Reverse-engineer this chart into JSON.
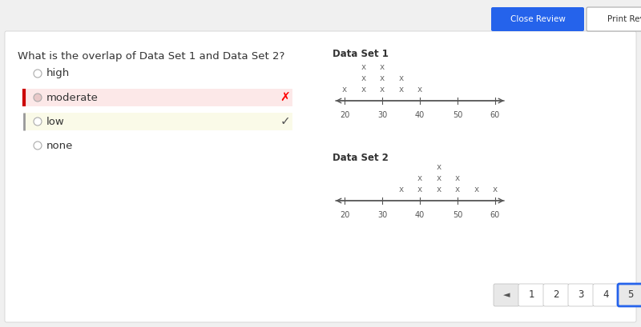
{
  "bg_color": "#f0f0f0",
  "panel_color": "#ffffff",
  "question": "What is the overlap of Data Set 1 and Data Set 2?",
  "choices": [
    "high",
    "moderate",
    "low",
    "none"
  ],
  "choice_selected_wrong": "moderate",
  "choice_correct": "low",
  "moderate_bg": "#fce8e8",
  "low_bg": "#fafae8",
  "moderate_border": "#cc0000",
  "low_border": "#888888",
  "ds1_label": "Data Set 1",
  "ds2_label": "Data Set 2",
  "axis_ticks": [
    20,
    30,
    40,
    50,
    60
  ],
  "ds1_data": {
    "row1": [
      25,
      30
    ],
    "row2": [
      25,
      30,
      35
    ],
    "row3": [
      20,
      25,
      30,
      35,
      40
    ]
  },
  "ds2_data": {
    "row1": [
      45
    ],
    "row2": [
      40,
      45,
      50
    ],
    "row3": [
      35,
      40,
      45,
      50,
      55,
      60
    ]
  },
  "nav_buttons": [
    "1",
    "2",
    "3",
    "4",
    "5"
  ],
  "nav_active": 4,
  "close_btn_color": "#2563eb",
  "close_btn_text": "Close Review",
  "print_btn_text": "Print Review"
}
